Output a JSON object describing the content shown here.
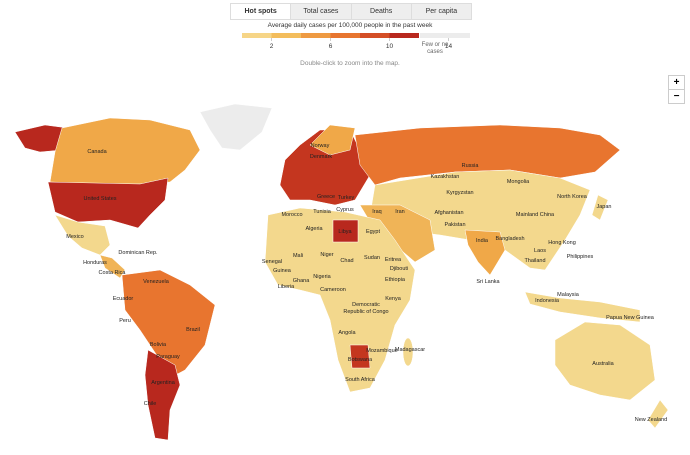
{
  "tabs": [
    "Hot spots",
    "Total cases",
    "Deaths",
    "Per capita"
  ],
  "legend": {
    "title": "Average daily cases per 100,000 people in the past week",
    "ticks": [
      2,
      6,
      10,
      14
    ],
    "no_data_label": [
      "Few or no",
      "cases"
    ]
  },
  "hint": "Double-click to zoom into the map.",
  "zoom": {
    "in": "+",
    "out": "−"
  },
  "map": {
    "labels": [
      {
        "lines": [
          "Canada"
        ]
      },
      {
        "lines": [
          "United States"
        ]
      },
      {
        "lines": [
          "Mexico"
        ]
      },
      {
        "lines": [
          "Honduras"
        ]
      },
      {
        "lines": [
          "Dominican Rep."
        ]
      },
      {
        "lines": [
          "Costa Rica"
        ]
      },
      {
        "lines": [
          "Venezuela"
        ]
      },
      {
        "lines": [
          "Ecuador"
        ]
      },
      {
        "lines": [
          "Peru"
        ]
      },
      {
        "lines": [
          "Bolivia"
        ]
      },
      {
        "lines": [
          "Brazil"
        ]
      },
      {
        "lines": [
          "Paraguay"
        ]
      },
      {
        "lines": [
          "Argentina"
        ]
      },
      {
        "lines": [
          "Chile"
        ]
      },
      {
        "lines": [
          "Norway"
        ]
      },
      {
        "lines": [
          "Denmark"
        ]
      },
      {
        "lines": [
          "Russia"
        ]
      },
      {
        "lines": [
          "Kazakhstan"
        ]
      },
      {
        "lines": [
          "Mongolia"
        ]
      },
      {
        "lines": [
          "Kyrgyzstan"
        ]
      },
      {
        "lines": [
          "Turkey"
        ]
      },
      {
        "lines": [
          "Greece"
        ]
      },
      {
        "lines": [
          "Cyprus"
        ]
      },
      {
        "lines": [
          "Iraq"
        ]
      },
      {
        "lines": [
          "Iran"
        ]
      },
      {
        "lines": [
          "Afghanistan"
        ]
      },
      {
        "lines": [
          "Pakistan"
        ]
      },
      {
        "lines": [
          "North Korea"
        ]
      },
      {
        "lines": [
          "Japan"
        ]
      },
      {
        "lines": [
          "Mainland China"
        ]
      },
      {
        "lines": [
          "India"
        ]
      },
      {
        "lines": [
          "Bangladesh"
        ]
      },
      {
        "lines": [
          "Hong Kong"
        ]
      },
      {
        "lines": [
          "Laos"
        ]
      },
      {
        "lines": [
          "Philippines"
        ]
      },
      {
        "lines": [
          "Thailand"
        ]
      },
      {
        "lines": [
          "Sri Lanka"
        ]
      },
      {
        "lines": [
          "Malaysia"
        ]
      },
      {
        "lines": [
          "Indonesia"
        ]
      },
      {
        "lines": [
          "Papua New Guinea"
        ]
      },
      {
        "lines": [
          "Australia"
        ]
      },
      {
        "lines": [
          "New Zealand"
        ]
      },
      {
        "lines": [
          "Morocco"
        ]
      },
      {
        "lines": [
          "Tunisia"
        ]
      },
      {
        "lines": [
          "Algeria"
        ]
      },
      {
        "lines": [
          "Libya"
        ]
      },
      {
        "lines": [
          "Egypt"
        ]
      },
      {
        "lines": [
          "Mali"
        ]
      },
      {
        "lines": [
          "Niger"
        ]
      },
      {
        "lines": [
          "Chad"
        ]
      },
      {
        "lines": [
          "Sudan"
        ]
      },
      {
        "lines": [
          "Eritrea"
        ]
      },
      {
        "lines": [
          "Djibouti"
        ]
      },
      {
        "lines": [
          "Senegal"
        ]
      },
      {
        "lines": [
          "Guinea"
        ]
      },
      {
        "lines": [
          "Liberia"
        ]
      },
      {
        "lines": [
          "Ghana"
        ]
      },
      {
        "lines": [
          "Nigeria"
        ]
      },
      {
        "lines": [
          "Cameroon"
        ]
      },
      {
        "lines": [
          "Ethiopia"
        ]
      },
      {
        "lines": [
          "Democratic",
          "Republic of Congo"
        ]
      },
      {
        "lines": [
          "Kenya"
        ]
      },
      {
        "lines": [
          "Angola"
        ]
      },
      {
        "lines": [
          "Mozambique"
        ]
      },
      {
        "lines": [
          "Madagascar"
        ]
      },
      {
        "lines": [
          "Botswana"
        ]
      },
      {
        "lines": [
          "South Africa"
        ]
      }
    ]
  }
}
